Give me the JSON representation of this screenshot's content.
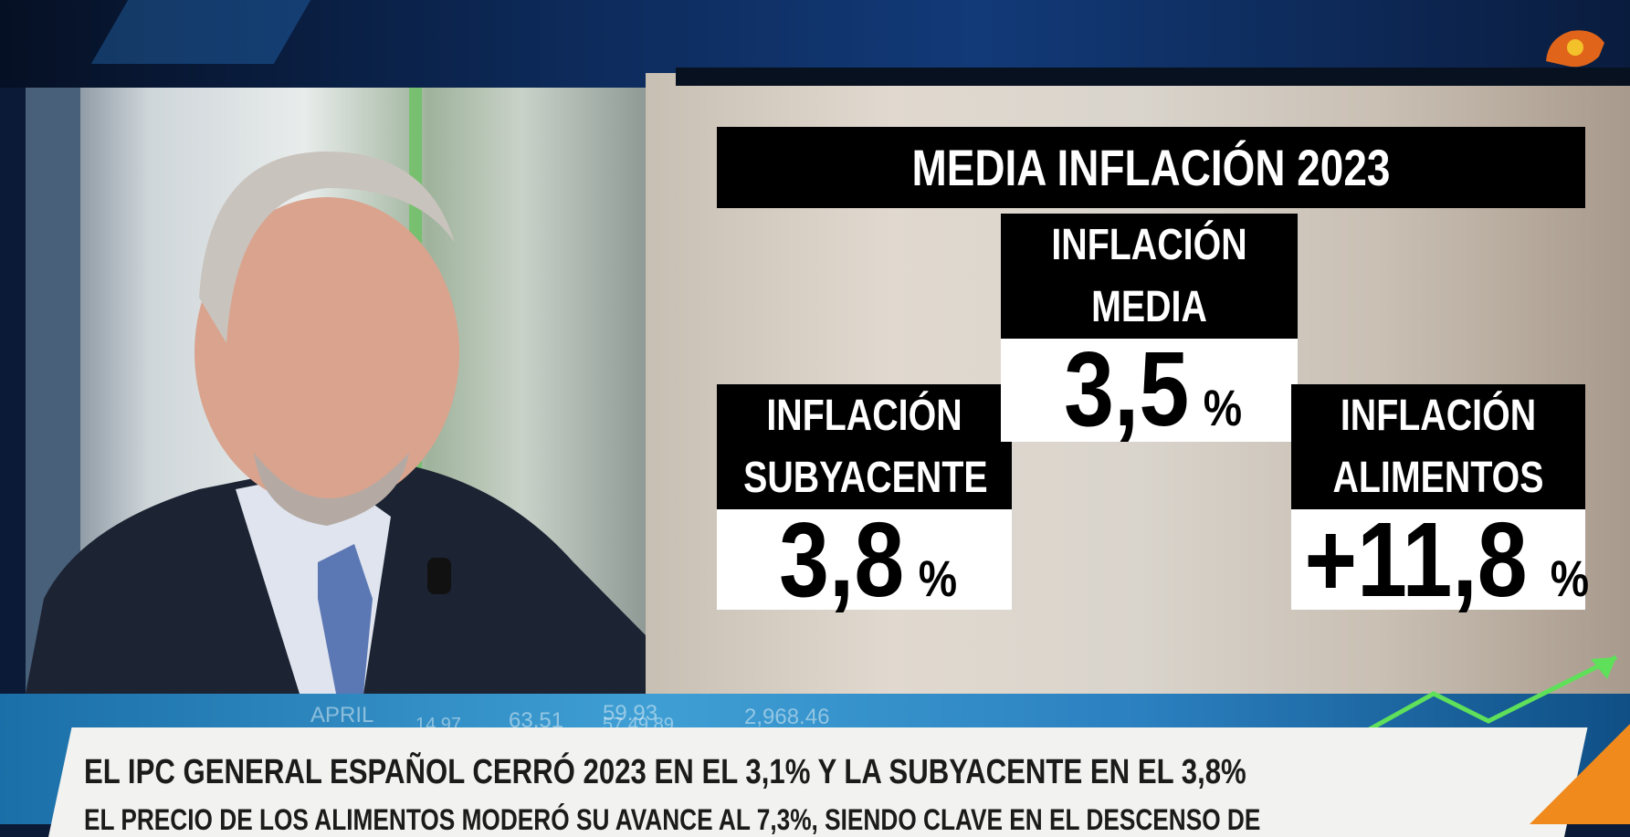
{
  "graphic": {
    "title": "MEDIA INFLACIÓN 2023",
    "boxes": [
      {
        "label_lines": [
          "INFLACIÓN",
          "SUBYACENTE"
        ],
        "value": "3,8",
        "unit": "%"
      },
      {
        "label_lines": [
          "INFLACIÓN",
          "MEDIA"
        ],
        "value": "3,5",
        "unit": "%"
      },
      {
        "label_lines": [
          "INFLACIÓN",
          "ALIMENTOS"
        ],
        "value": "+11,8",
        "unit": "%"
      }
    ]
  },
  "ticker_background": [
    "APRIL",
    "63.51",
    "59.93",
    "2,968.46",
    "57.49.89",
    "14.97"
  ],
  "lower_third": {
    "headline": "EL IPC GENERAL ESPAÑOL CERRÓ 2023 EN EL 3,1% Y LA SUBYACENTE EN EL 3,8%",
    "subheadline": "EL PRECIO DE LOS ALIMENTOS MODERÓ SU AVANCE AL 7,3%, SIENDO CLAVE EN EL DESCENSO DE"
  }
}
